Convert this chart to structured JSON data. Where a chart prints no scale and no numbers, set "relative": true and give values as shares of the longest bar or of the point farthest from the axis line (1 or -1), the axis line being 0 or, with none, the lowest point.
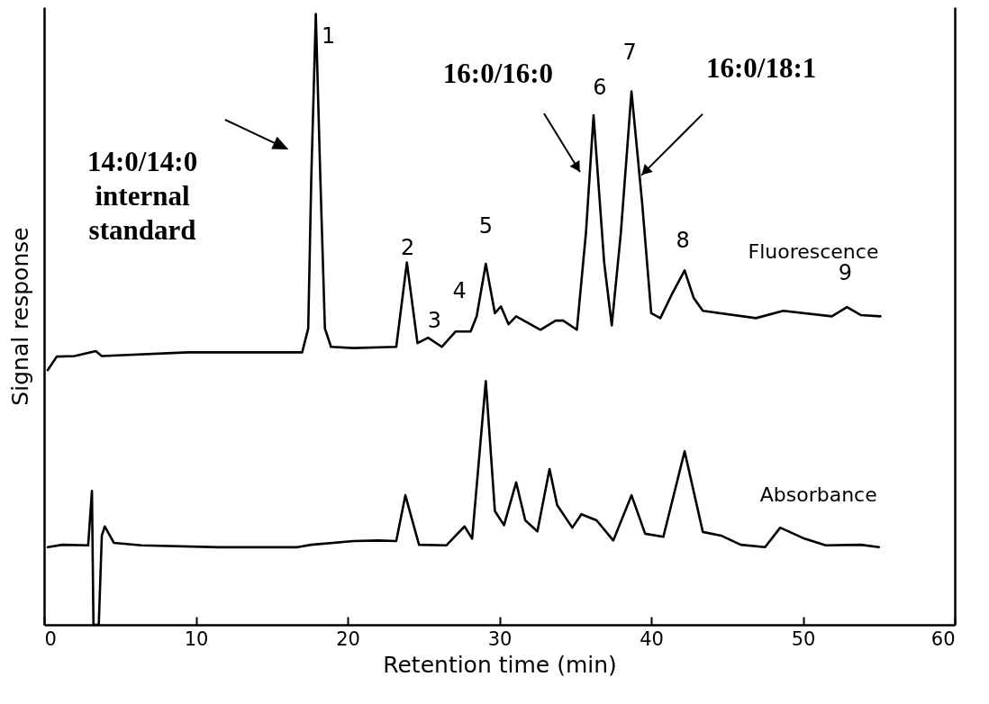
{
  "chart_data": {
    "type": "line",
    "relative": true,
    "xlabel": "Retention time (min)",
    "ylabel": "Signal response",
    "xlim": [
      0,
      60
    ],
    "xticks": [
      0,
      10,
      20,
      30,
      40,
      50,
      60
    ],
    "tick_labels": "x",
    "legend": false,
    "line_style": "solid",
    "series": [
      {
        "name": "Fluorescence",
        "color": "#000000",
        "x": [
          0.24,
          0.83,
          2.0,
          3.4,
          3.8,
          9.5,
          17.0,
          17.4,
          17.6,
          17.9,
          18.2,
          18.5,
          18.9,
          20.4,
          23.2,
          23.9,
          24.6,
          25.3,
          26.2,
          27.1,
          28.1,
          28.5,
          29.1,
          29.7,
          30.1,
          30.6,
          31.1,
          32.7,
          33.7,
          34.2,
          35.1,
          35.7,
          36.2,
          36.9,
          37.4,
          38.0,
          38.7,
          39.4,
          40.0,
          40.6,
          41.4,
          42.2,
          42.8,
          43.4,
          46.9,
          48.7,
          51.9,
          52.9,
          53.8,
          55.1
        ],
        "values": [
          0.417,
          0.439,
          0.44,
          0.448,
          0.44,
          0.446,
          0.446,
          0.485,
          0.73,
          1,
          0.73,
          0.485,
          0.455,
          0.453,
          0.455,
          0.593,
          0.461,
          0.47,
          0.455,
          0.48,
          0.48,
          0.505,
          0.591,
          0.51,
          0.521,
          0.492,
          0.505,
          0.483,
          0.498,
          0.498,
          0.483,
          0.642,
          0.834,
          0.593,
          0.49,
          0.642,
          0.873,
          0.691,
          0.51,
          0.502,
          0.543,
          0.58,
          0.535,
          0.514,
          0.502,
          0.514,
          0.505,
          0.52,
          0.507,
          0.505
        ]
      },
      {
        "name": "Absorbance",
        "color": "#000000",
        "x": [
          0.24,
          1.2,
          2.9,
          3.15,
          3.25,
          3.6,
          3.8,
          4.0,
          4.6,
          6.4,
          11.5,
          16.7,
          17.6,
          20.4,
          22.0,
          23.2,
          23.8,
          24.7,
          26.5,
          27.7,
          28.2,
          29.1,
          29.7,
          30.3,
          31.1,
          31.7,
          32.5,
          33.3,
          33.8,
          34.8,
          35.4,
          36.4,
          37.5,
          38.7,
          39.6,
          40.8,
          42.2,
          43.4,
          44.6,
          45.9,
          47.5,
          48.5,
          50.1,
          51.5,
          53.8,
          55.0
        ],
        "values": [
          0.127,
          0.131,
          0.13,
          0.219,
          0,
          0,
          0.146,
          0.161,
          0.134,
          0.13,
          0.127,
          0.127,
          0.131,
          0.137,
          0.138,
          0.137,
          0.212,
          0.131,
          0.13,
          0.161,
          0.141,
          0.399,
          0.186,
          0.163,
          0.233,
          0.171,
          0.153,
          0.255,
          0.196,
          0.159,
          0.181,
          0.171,
          0.138,
          0.212,
          0.149,
          0.144,
          0.284,
          0.152,
          0.146,
          0.131,
          0.127,
          0.159,
          0.141,
          0.13,
          0.131,
          0.127
        ]
      }
    ],
    "annotations": [
      {
        "text": "1",
        "x": 17.9,
        "y": 1
      },
      {
        "text": "2",
        "x": 23.9,
        "y": 0.593
      },
      {
        "text": "3",
        "x": 25.3,
        "y": 0.47
      },
      {
        "text": "4",
        "x": 27.6,
        "y": 0.48
      },
      {
        "text": "5",
        "x": 29.1,
        "y": 0.591
      },
      {
        "text": "6",
        "x": 36.2,
        "y": 0.834
      },
      {
        "text": "7",
        "x": 38.7,
        "y": 0.873
      },
      {
        "text": "8",
        "x": 42.2,
        "y": 0.58
      },
      {
        "text": "9",
        "x": 52.9,
        "y": 0.52
      },
      "14:0/14:0 internal standard",
      {
        "text": "16:0/16:0",
        "x": 36.2,
        "y": 0.834
      },
      {
        "text": "16:0/18:1",
        "x": 38.7,
        "y": 0.873
      }
    ]
  }
}
